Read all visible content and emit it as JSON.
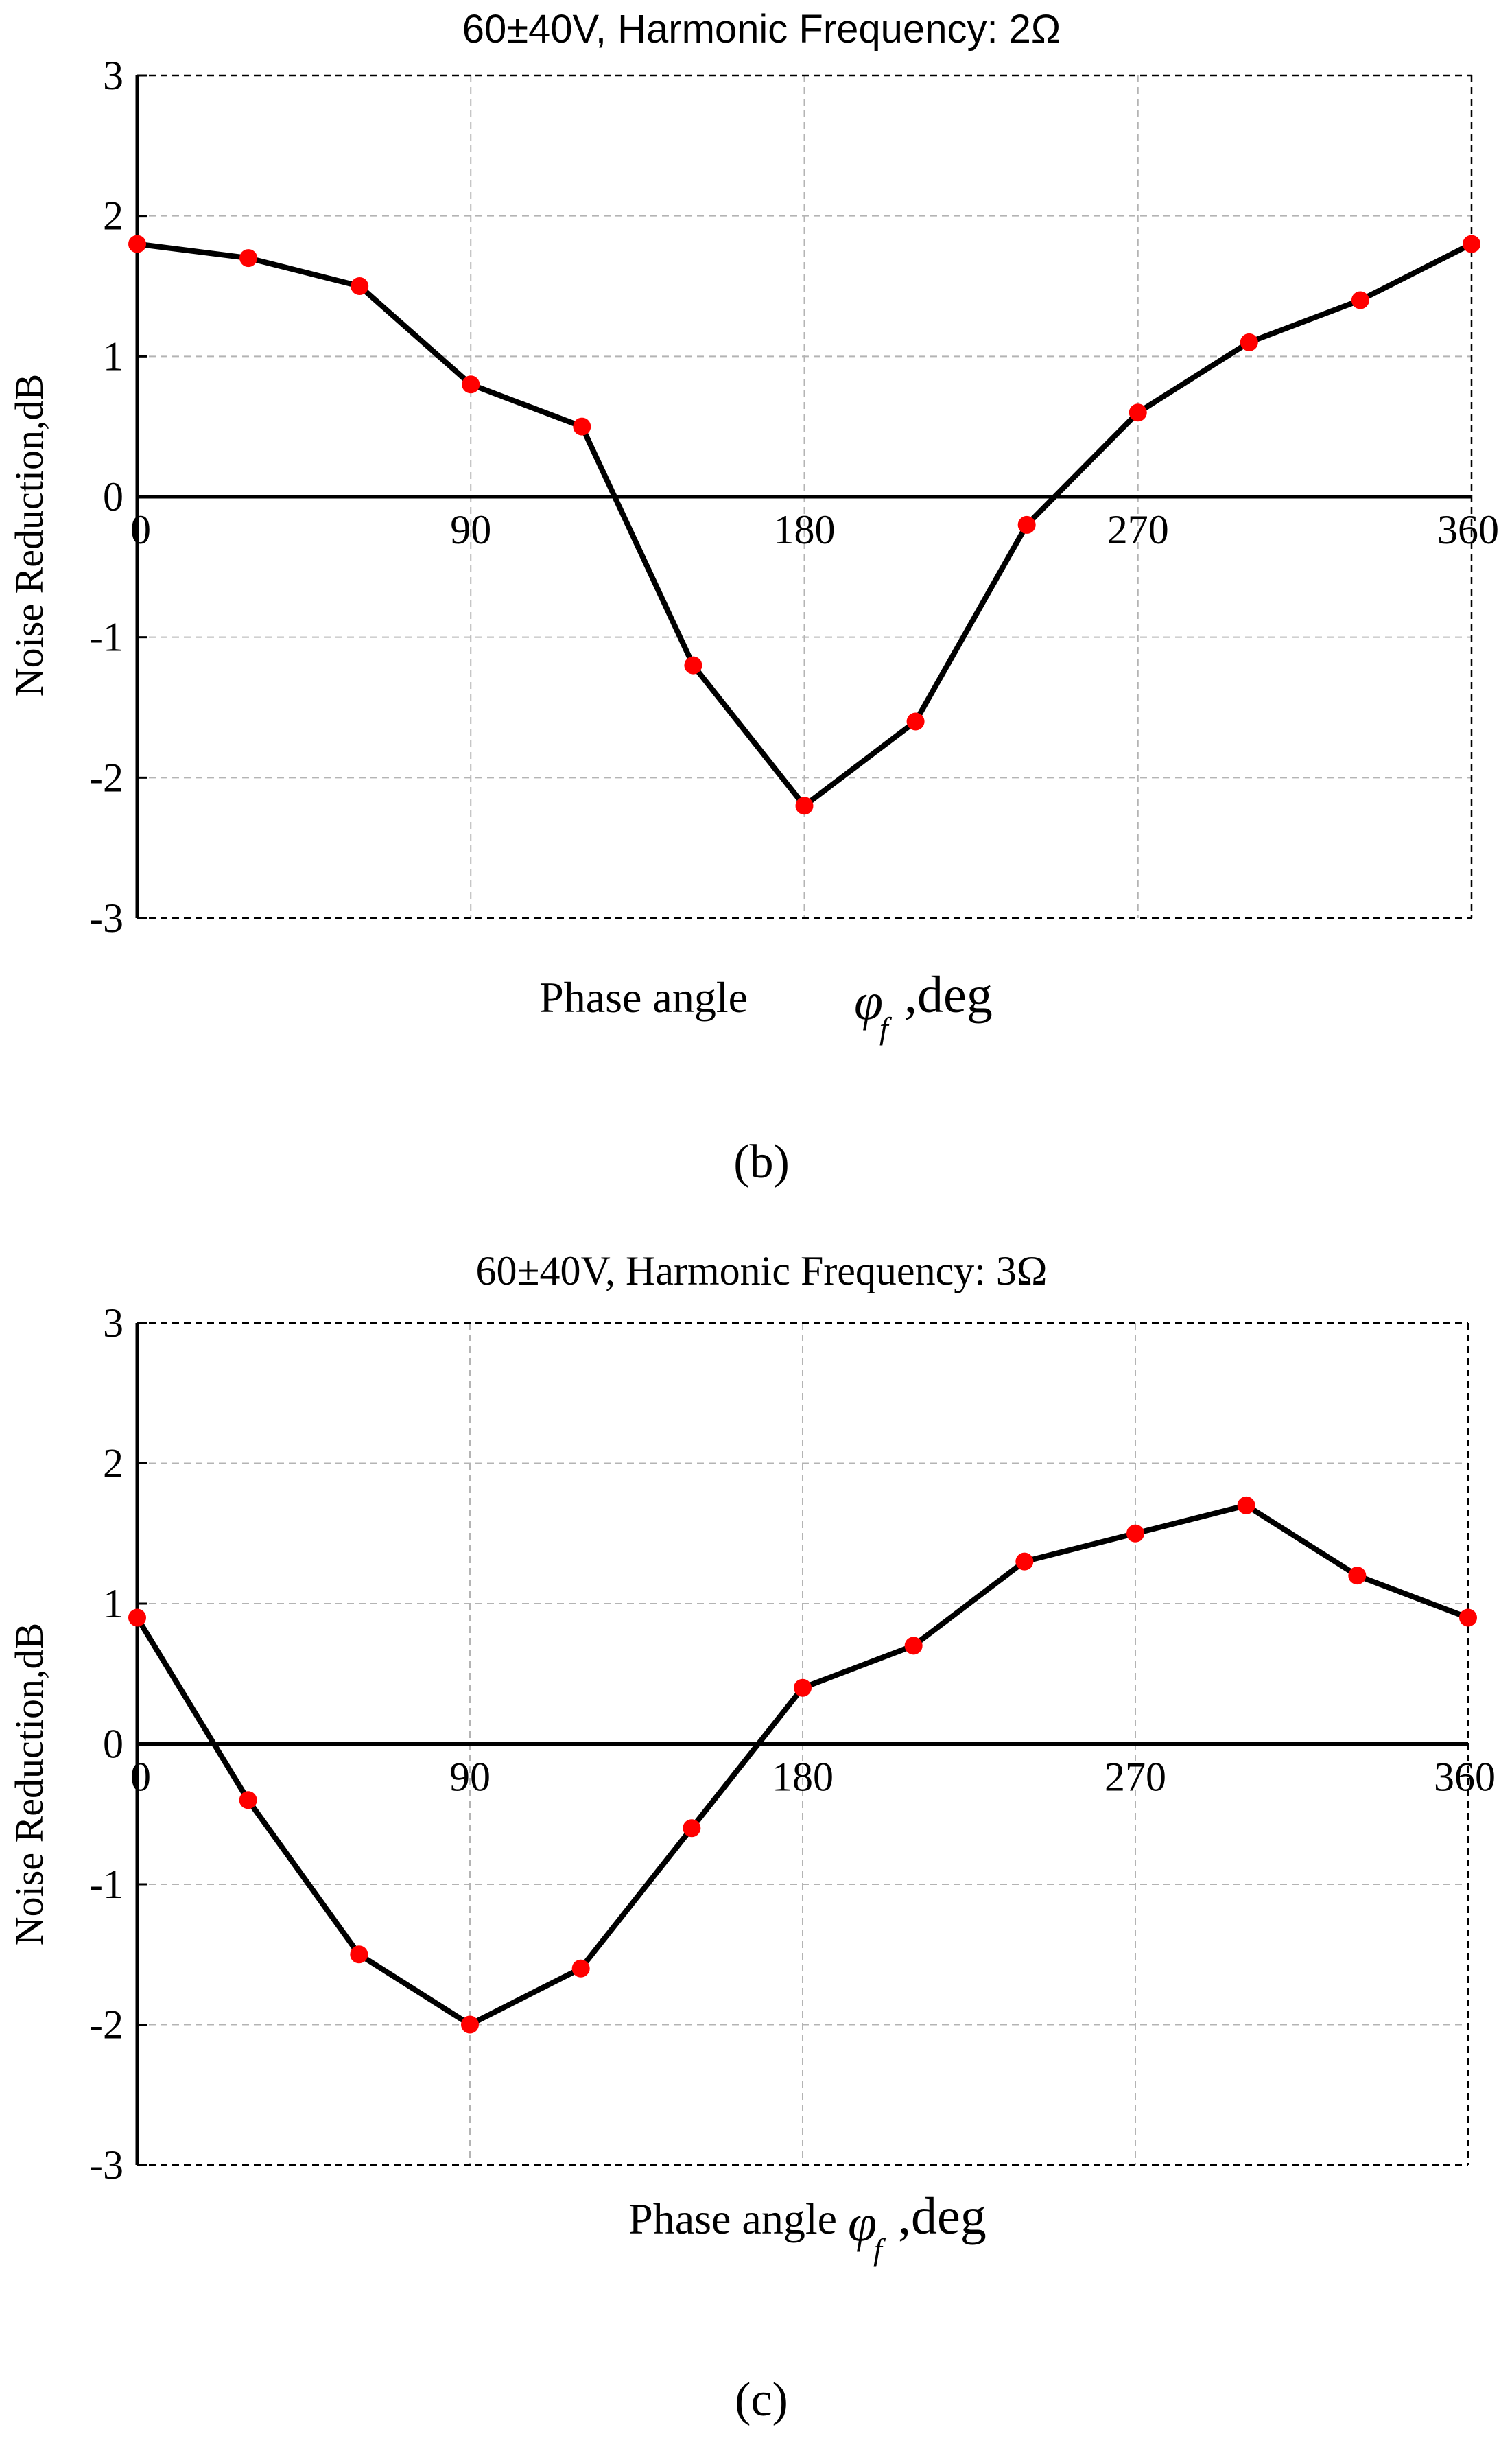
{
  "chart_data": [
    {
      "type": "line",
      "panel_label": "(b)",
      "title": "60±40V,   Harmonic Frequency:   2Ω",
      "xlabel": "Phase angle",
      "xlabel_symbol": "φ",
      "xlabel_subscript": "f",
      "xlabel_unit": ",deg",
      "ylabel": "Noise Reduction,dB",
      "xlim": [
        0,
        360
      ],
      "ylim": [
        -3,
        3
      ],
      "xticks": [
        0,
        90,
        180,
        270,
        360
      ],
      "yticks": [
        3,
        2,
        1,
        0,
        -1,
        -2,
        -3
      ],
      "grid": true,
      "x": [
        0,
        30,
        60,
        90,
        120,
        150,
        180,
        210,
        240,
        270,
        300,
        330,
        360
      ],
      "y": [
        1.8,
        1.7,
        1.5,
        0.8,
        0.5,
        -1.2,
        -2.2,
        -1.6,
        -0.2,
        0.6,
        1.1,
        1.4,
        1.8
      ],
      "line_color": "#000000",
      "marker_color": "#ff0000"
    },
    {
      "type": "line",
      "panel_label": "(c)",
      "title": "60±40V,   Harmonic Frequency:   3Ω",
      "xlabel": "Phase angle",
      "xlabel_symbol": "φ",
      "xlabel_subscript": "f",
      "xlabel_unit": ",deg",
      "ylabel": "Noise Reduction,dB",
      "xlim": [
        0,
        360
      ],
      "ylim": [
        -3,
        3
      ],
      "xticks": [
        0,
        90,
        180,
        270,
        360
      ],
      "yticks": [
        3,
        2,
        1,
        0,
        -1,
        -2,
        -3
      ],
      "grid": true,
      "x": [
        0,
        30,
        60,
        90,
        120,
        150,
        180,
        210,
        240,
        270,
        300,
        330,
        360
      ],
      "y": [
        0.9,
        -0.4,
        -1.5,
        -2.0,
        -1.6,
        -0.6,
        0.4,
        0.7,
        1.3,
        1.5,
        1.7,
        1.2,
        0.9
      ],
      "line_color": "#000000",
      "marker_color": "#ff0000"
    }
  ]
}
